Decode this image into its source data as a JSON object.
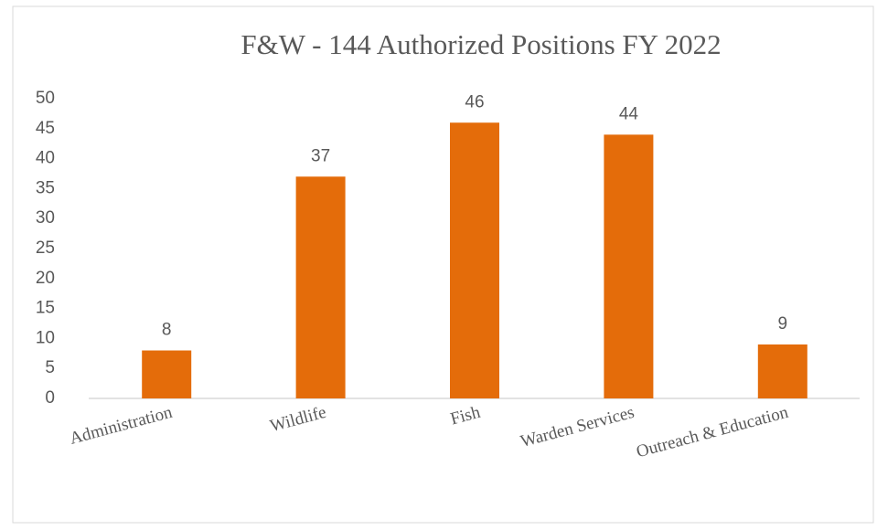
{
  "chart_data": {
    "type": "bar",
    "title": "F&W - 144 Authorized Positions FY 2022",
    "categories": [
      "Administration",
      "Wildlife",
      "Fish",
      "Warden Services",
      "Outreach & Education"
    ],
    "values": [
      8,
      37,
      46,
      44,
      9
    ],
    "color": "#e46c0a",
    "ylim": [
      0,
      50
    ],
    "yticks": [
      0,
      5,
      10,
      15,
      20,
      25,
      30,
      35,
      40,
      45,
      50
    ],
    "grid": false,
    "data_labels": true
  }
}
